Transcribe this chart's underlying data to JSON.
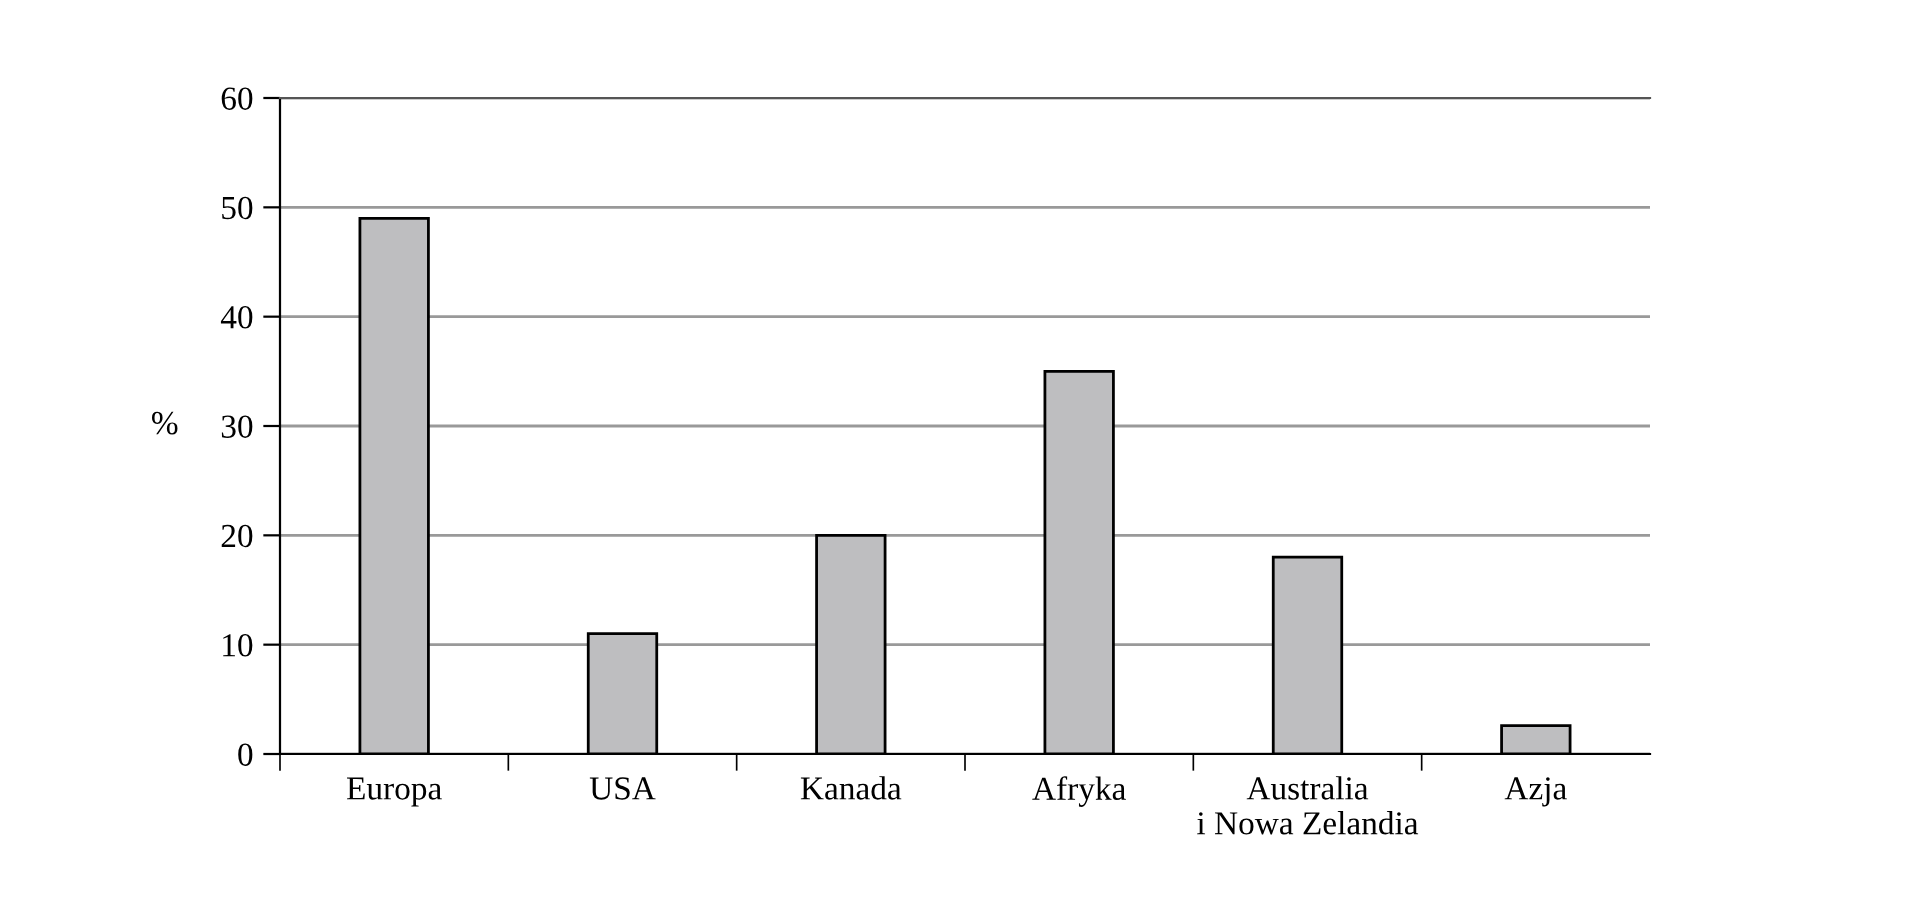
{
  "chart_data": {
    "type": "bar",
    "ylabel": "%",
    "categories": [
      "Europa",
      "USA",
      "Kanada",
      "Afryka",
      "Australia\ni Nowa Zelandia",
      "Azja"
    ],
    "values": [
      49,
      11,
      20,
      35,
      18,
      2.6
    ],
    "color": "#bebec0",
    "ylim": [
      0,
      60
    ],
    "yticks": [
      0,
      10,
      20,
      30,
      40,
      50,
      60
    ],
    "grid": "y"
  }
}
